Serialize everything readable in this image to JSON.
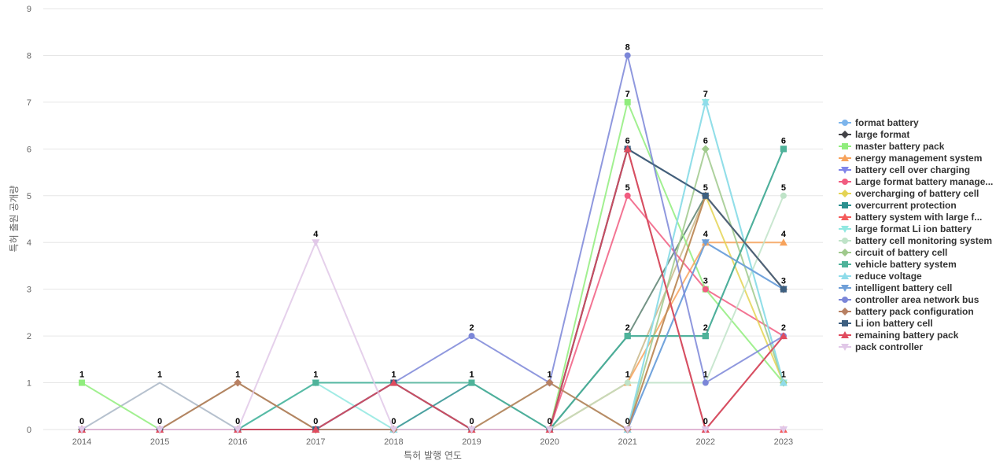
{
  "chart_data": {
    "type": "line",
    "x": [
      "2014",
      "2015",
      "2016",
      "2017",
      "2018",
      "2019",
      "2020",
      "2021",
      "2022",
      "2023"
    ],
    "xlabel": "특허 발행 연도",
    "ylabel": "특허 출원 공개량",
    "ylim": [
      0,
      9
    ],
    "yticks": [
      0,
      1,
      2,
      3,
      4,
      5,
      6,
      7,
      8,
      9
    ],
    "grid": true,
    "legend_position": "right",
    "series": [
      {
        "name": "format battery",
        "marker": "circle",
        "color": "#7cb5ec",
        "values": [
          0,
          0,
          0,
          0,
          0,
          0,
          0,
          0,
          4,
          3
        ]
      },
      {
        "name": "large format",
        "marker": "diamond",
        "color": "#434348",
        "values": [
          0,
          0,
          0,
          0,
          0,
          0,
          0,
          6,
          5,
          3
        ]
      },
      {
        "name": "master battery pack",
        "marker": "square",
        "color": "#90ed7d",
        "values": [
          1,
          0,
          0,
          0,
          0,
          0,
          0,
          7,
          3,
          1
        ]
      },
      {
        "name": "energy management system",
        "marker": "triangle",
        "color": "#f7a35c",
        "values": [
          0,
          0,
          0,
          0,
          0,
          0,
          0,
          1,
          4,
          4
        ]
      },
      {
        "name": "battery cell over charging",
        "marker": "triangle-down",
        "color": "#8085e9",
        "values": [
          0,
          0,
          0,
          0,
          0,
          0,
          0,
          0,
          0,
          0
        ]
      },
      {
        "name": "Large format battery manage...",
        "marker": "circle",
        "color": "#f15c80",
        "values": [
          0,
          0,
          0,
          0,
          0,
          0,
          0,
          5,
          3,
          2
        ]
      },
      {
        "name": "overcharging of battery cell",
        "marker": "diamond",
        "color": "#e4d354",
        "values": [
          0,
          0,
          0,
          0,
          0,
          0,
          0,
          0,
          5,
          1
        ]
      },
      {
        "name": "overcurrent protection",
        "marker": "square",
        "color": "#2b908f",
        "values": [
          0,
          0,
          0,
          0,
          0,
          1,
          0,
          2,
          2,
          6
        ]
      },
      {
        "name": "battery system with large f...",
        "marker": "triangle",
        "color": "#f45b5b",
        "values": [
          0,
          0,
          0,
          0,
          0,
          0,
          0,
          0,
          0,
          0
        ]
      },
      {
        "name": "large format Li ion battery",
        "marker": "triangle-down",
        "color": "#91e8e1",
        "values": [
          0,
          0,
          0,
          1,
          0,
          0,
          0,
          0,
          7,
          1
        ]
      },
      {
        "name": "battery cell monitoring system",
        "marker": "circle",
        "color": "#bfe3c8",
        "values": [
          0,
          0,
          0,
          0,
          0,
          0,
          0,
          1,
          1,
          5
        ]
      },
      {
        "name": "circuit of battery cell",
        "marker": "diamond",
        "color": "#9fc98c",
        "values": [
          0,
          0,
          0,
          0,
          0,
          0,
          0,
          0,
          6,
          1
        ]
      },
      {
        "name": "vehicle battery system",
        "marker": "square",
        "color": "#4fb39a",
        "values": [
          0,
          0,
          0,
          1,
          1,
          1,
          0,
          2,
          2,
          6
        ]
      },
      {
        "name": "reduce voltage",
        "marker": "triangle",
        "color": "#8fdcea",
        "values": [
          0,
          0,
          0,
          0,
          0,
          0,
          0,
          0,
          7,
          1
        ]
      },
      {
        "name": "intelligent battery cell",
        "marker": "triangle-down",
        "color": "#6f9fd8",
        "values": [
          0,
          0,
          0,
          0,
          0,
          0,
          0,
          0,
          4,
          3
        ]
      },
      {
        "name": "controller area network bus",
        "marker": "circle",
        "color": "#7b86d8",
        "values": [
          0,
          0,
          0,
          0,
          1,
          2,
          1,
          8,
          1,
          2
        ]
      },
      {
        "name": "battery pack configuration",
        "marker": "diamond",
        "color": "#b88062",
        "values": [
          0,
          0,
          1,
          0,
          0,
          0,
          1,
          0,
          5,
          3
        ]
      },
      {
        "name": "Li ion battery cell",
        "marker": "square",
        "color": "#3d5f80",
        "values": [
          0,
          0,
          0,
          0,
          1,
          0,
          0,
          6,
          5,
          3
        ]
      },
      {
        "name": "remaining battery pack",
        "marker": "triangle",
        "color": "#e04b5e",
        "values": [
          0,
          0,
          0,
          0,
          1,
          0,
          0,
          6,
          0,
          2
        ]
      },
      {
        "name": "pack controller",
        "marker": "triangle-down",
        "color": "#e1c8e8",
        "values": [
          0,
          0,
          0,
          4,
          0,
          0,
          0,
          0,
          0,
          0
        ]
      }
    ],
    "extra_lines": [
      {
        "color": "#a9b6c6",
        "values": [
          0,
          1,
          0,
          0,
          0,
          0,
          0,
          0,
          0,
          0
        ]
      },
      {
        "color": "#8a8a4a",
        "values": [
          0,
          0,
          1,
          0,
          0,
          0,
          0,
          0,
          0,
          0
        ]
      },
      {
        "color": "#5cc8c8",
        "values": [
          0,
          0,
          0,
          1,
          1,
          0,
          0,
          0,
          0,
          0
        ]
      },
      {
        "color": "#c9b98a",
        "values": [
          0,
          0,
          0,
          0,
          0,
          0,
          0,
          1,
          5,
          3
        ]
      },
      {
        "color": "#9e4459",
        "values": [
          0,
          0,
          0,
          0,
          1,
          0,
          0,
          6,
          0,
          2
        ]
      },
      {
        "color": "#a8c070",
        "values": [
          0,
          0,
          0,
          0,
          0,
          0,
          1,
          0,
          0,
          0
        ]
      },
      {
        "color": "#5a8070",
        "values": [
          0,
          0,
          0,
          0,
          0,
          0,
          0,
          2,
          5,
          3
        ]
      }
    ],
    "data_labels": [
      {
        "x": "2014",
        "y": 1,
        "text": "1"
      },
      {
        "x": "2014",
        "y": 0,
        "text": "0"
      },
      {
        "x": "2015",
        "y": 1,
        "text": "1"
      },
      {
        "x": "2015",
        "y": 0,
        "text": "0"
      },
      {
        "x": "2016",
        "y": 1,
        "text": "1"
      },
      {
        "x": "2016",
        "y": 0,
        "text": "0"
      },
      {
        "x": "2017",
        "y": 4,
        "text": "4"
      },
      {
        "x": "2017",
        "y": 1,
        "text": "1"
      },
      {
        "x": "2017",
        "y": 0,
        "text": "0"
      },
      {
        "x": "2018",
        "y": 1,
        "text": "1"
      },
      {
        "x": "2018",
        "y": 0,
        "text": "0"
      },
      {
        "x": "2019",
        "y": 2,
        "text": "2"
      },
      {
        "x": "2019",
        "y": 1,
        "text": "1"
      },
      {
        "x": "2019",
        "y": 0,
        "text": "0"
      },
      {
        "x": "2020",
        "y": 1,
        "text": "1"
      },
      {
        "x": "2020",
        "y": 0,
        "text": "0"
      },
      {
        "x": "2021",
        "y": 8,
        "text": "8"
      },
      {
        "x": "2021",
        "y": 7,
        "text": "7"
      },
      {
        "x": "2021",
        "y": 6,
        "text": "6"
      },
      {
        "x": "2021",
        "y": 5,
        "text": "5"
      },
      {
        "x": "2021",
        "y": 2,
        "text": "2"
      },
      {
        "x": "2021",
        "y": 1,
        "text": "1"
      },
      {
        "x": "2021",
        "y": 0,
        "text": "0"
      },
      {
        "x": "2022",
        "y": 7,
        "text": "7"
      },
      {
        "x": "2022",
        "y": 6,
        "text": "6"
      },
      {
        "x": "2022",
        "y": 5,
        "text": "5"
      },
      {
        "x": "2022",
        "y": 4,
        "text": "4"
      },
      {
        "x": "2022",
        "y": 3,
        "text": "3"
      },
      {
        "x": "2022",
        "y": 2,
        "text": "2"
      },
      {
        "x": "2022",
        "y": 1,
        "text": "1"
      },
      {
        "x": "2022",
        "y": 0,
        "text": "0"
      },
      {
        "x": "2023",
        "y": 6,
        "text": "6"
      },
      {
        "x": "2023",
        "y": 5,
        "text": "5"
      },
      {
        "x": "2023",
        "y": 4,
        "text": "4"
      },
      {
        "x": "2023",
        "y": 3,
        "text": "3"
      },
      {
        "x": "2023",
        "y": 2,
        "text": "2"
      },
      {
        "x": "2023",
        "y": 1,
        "text": "1"
      }
    ]
  }
}
